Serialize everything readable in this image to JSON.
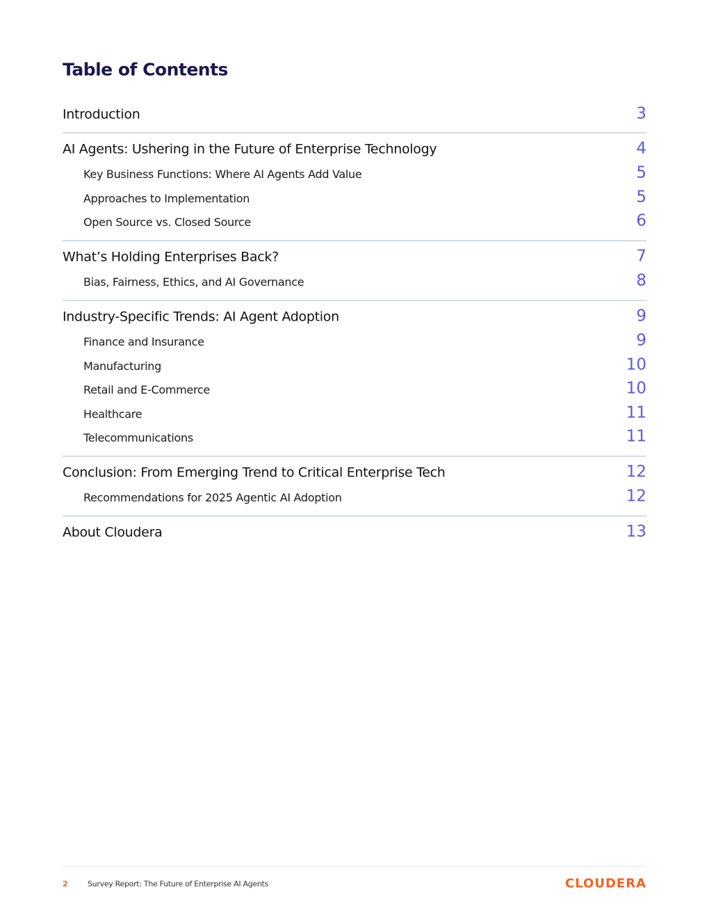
{
  "header": {
    "title": "Table of Contents"
  },
  "sections": [
    {
      "title": "Introduction",
      "page": 3,
      "subsections": []
    },
    {
      "title": "AI Agents: Ushering in the Future of Enterprise Technology",
      "page": 4,
      "subsections": [
        {
          "title": "Key Business Functions: Where AI Agents Add Value",
          "page": 5
        },
        {
          "title": "Approaches to Implementation",
          "page": 5
        },
        {
          "title": "Open Source vs. Closed Source",
          "page": 6
        }
      ]
    },
    {
      "title": "What’s Holding Enterprises Back?",
      "page": 7,
      "subsections": [
        {
          "title": "Bias, Fairness, Ethics, and AI Governance",
          "page": 8
        }
      ]
    },
    {
      "title": "Industry-Specific Trends: AI Agent Adoption",
      "page": 9,
      "subsections": [
        {
          "title": "Finance and Insurance",
          "page": 9
        },
        {
          "title": "Manufacturing",
          "page": 10
        },
        {
          "title": "Retail and E-Commerce",
          "page": 10
        },
        {
          "title": "Healthcare",
          "page": 11
        },
        {
          "title": "Telecommunications",
          "page": 11
        }
      ]
    },
    {
      "title": "Conclusion: From Emerging Trend to Critical Enterprise Tech",
      "page": 12,
      "subsections": [
        {
          "title": "Recommendations for 2025 Agentic AI Adoption",
          "page": 12
        }
      ]
    },
    {
      "title": "About Cloudera",
      "page": 13,
      "subsections": []
    }
  ],
  "footer": {
    "page_number": 2,
    "text": "Survey Report: The Future of Enterprise AI Agents",
    "logo": "CLOUDERA"
  }
}
